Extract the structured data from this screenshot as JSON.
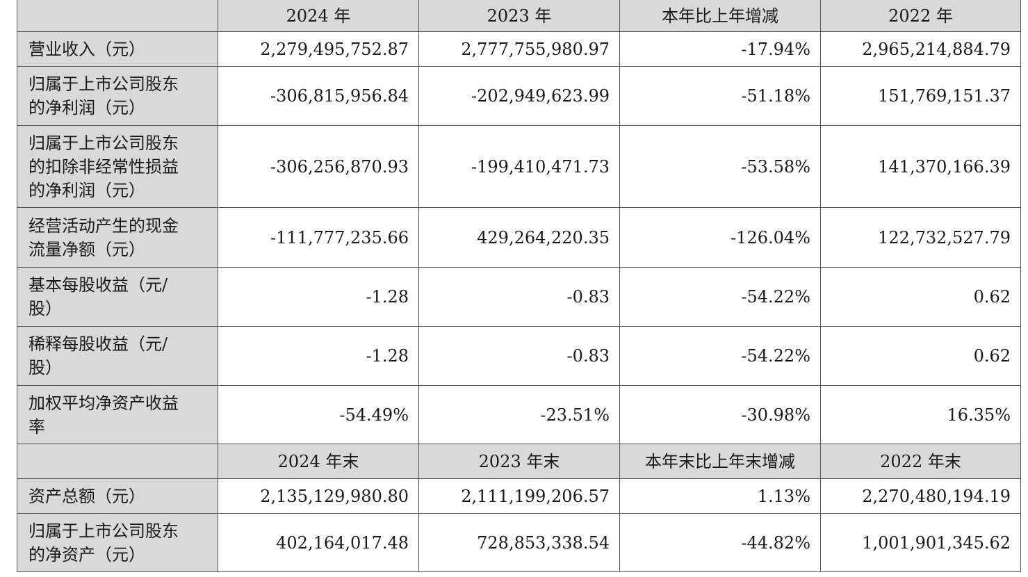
{
  "table": {
    "rows": [
      {
        "kind": "head",
        "cells": [
          null,
          "2024 年",
          "2023 年",
          "本年比上年增减",
          "2022 年"
        ]
      },
      {
        "kind": "data",
        "cells": [
          [
            "营业收入（元）"
          ],
          "2,279,495,752.87",
          "2,777,755,980.97",
          "-17.94%",
          "2,965,214,884.79"
        ]
      },
      {
        "kind": "data",
        "cells": [
          [
            "归属于上市公司股东",
            "的净利润（元）"
          ],
          "-306,815,956.84",
          "-202,949,623.99",
          "-51.18%",
          "151,769,151.37"
        ]
      },
      {
        "kind": "data",
        "cells": [
          [
            "归属于上市公司股东",
            "的扣除非经常性损益",
            "的净利润（元）"
          ],
          "-306,256,870.93",
          "-199,410,471.73",
          "-53.58%",
          "141,370,166.39"
        ]
      },
      {
        "kind": "data",
        "cells": [
          [
            "经营活动产生的现金",
            "流量净额（元）"
          ],
          "-111,777,235.66",
          "429,264,220.35",
          "-126.04%",
          "122,732,527.79"
        ]
      },
      {
        "kind": "data",
        "cells": [
          [
            "基本每股收益（元/",
            "股）"
          ],
          "-1.28",
          "-0.83",
          "-54.22%",
          "0.62"
        ]
      },
      {
        "kind": "data",
        "cells": [
          [
            "稀释每股收益（元/",
            "股）"
          ],
          "-1.28",
          "-0.83",
          "-54.22%",
          "0.62"
        ]
      },
      {
        "kind": "data",
        "cells": [
          [
            "加权平均净资产收益",
            "率"
          ],
          "-54.49%",
          "-23.51%",
          "-30.98%",
          "16.35%"
        ]
      },
      {
        "kind": "head",
        "cells": [
          null,
          "2024 年末",
          "2023 年末",
          "本年末比上年末增减",
          "2022 年末"
        ]
      },
      {
        "kind": "data",
        "cells": [
          [
            "资产总额（元）"
          ],
          "2,135,129,980.80",
          "2,111,199,206.57",
          "1.13%",
          "2,270,480,194.19"
        ]
      },
      {
        "kind": "data",
        "cells": [
          [
            "归属于上市公司股东",
            "的净资产（元）"
          ],
          "402,164,017.48",
          "728,853,338.54",
          "-44.82%",
          "1,001,901,345.62"
        ]
      }
    ]
  }
}
